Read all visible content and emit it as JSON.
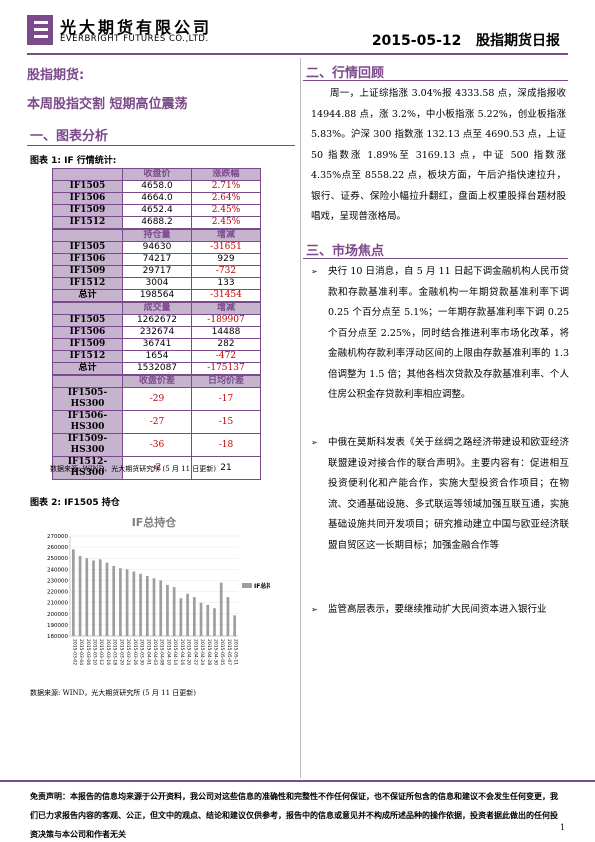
{
  "header": {
    "company_cn": "光大期货有限公司",
    "company_en": "EVERBRIGHT FUTURES CO.,LTD.",
    "date": "2015-05-12",
    "report_name": "股指期货日报"
  },
  "lead": {
    "category": "股指期货:",
    "headline": "本周股指交割 短期高位震荡"
  },
  "section1": {
    "title": "一、图表分析"
  },
  "figure1": {
    "title": "图表 1: IF 行情统计:",
    "groups": [
      {
        "headers": [
          "收盘价",
          "涨跌幅"
        ],
        "rows": [
          [
            "IF1505",
            "4658.0",
            "2.71%"
          ],
          [
            "IF1506",
            "4664.0",
            "2.64%"
          ],
          [
            "IF1509",
            "4652.4",
            "2.45%"
          ],
          [
            "IF1512",
            "4688.2",
            "2.45%"
          ]
        ]
      },
      {
        "headers": [
          "持仓量",
          "增减"
        ],
        "rows": [
          [
            "IF1505",
            "94630",
            "-31651"
          ],
          [
            "IF1506",
            "74217",
            "929"
          ],
          [
            "IF1509",
            "29717",
            "-732"
          ],
          [
            "IF1512",
            "3004",
            "133"
          ],
          [
            "总计",
            "198564",
            "-31454"
          ]
        ]
      },
      {
        "headers": [
          "成交量",
          "增减"
        ],
        "rows": [
          [
            "IF1505",
            "1262672",
            "-189907"
          ],
          [
            "IF1506",
            "232674",
            "14488"
          ],
          [
            "IF1509",
            "36741",
            "282"
          ],
          [
            "IF1512",
            "1654",
            "-472"
          ],
          [
            "总计",
            "1532087",
            "-175137"
          ]
        ]
      },
      {
        "headers": [
          "收盘价差",
          "日均价差"
        ],
        "rows": [
          [
            "IF1505-HS300",
            "-29",
            "-17"
          ],
          [
            "IF1506-HS300",
            "-27",
            "-15"
          ],
          [
            "IF1509-HS300",
            "-36",
            "-18"
          ],
          [
            "IF1512-HS300",
            "-2",
            "21"
          ]
        ]
      }
    ],
    "source": "数据来源: WIND、光大期货研究所 (5 月 11 日更新)"
  },
  "figure2": {
    "title": "图表 2: IF1505 持仓",
    "source": "数据来源: WIND，光大期货研究所 (5 月 11 日更新)"
  },
  "chart_data": {
    "type": "bar",
    "title": "IF总持仓",
    "legend": "IF总持仓",
    "legend_position": "right",
    "ylim": [
      180000,
      270000
    ],
    "yticks": [
      180000,
      190000,
      200000,
      210000,
      220000,
      230000,
      240000,
      250000,
      260000,
      270000
    ],
    "categories": [
      "2015-03-02",
      "2015-03-04",
      "2015-03-06",
      "2015-03-10",
      "2015-03-12",
      "2015-03-16",
      "2015-03-18",
      "2015-03-20",
      "2015-03-24",
      "2015-03-26",
      "2015-03-30",
      "2015-04-01",
      "2015-04-03",
      "2015-04-08",
      "2015-04-10",
      "2015-04-14",
      "2015-04-16",
      "2015-04-20",
      "2015-04-22",
      "2015-04-24",
      "2015-04-28",
      "2015-04-30",
      "2015-05-05",
      "2015-05-07",
      "2015-05-11"
    ],
    "values": [
      258000,
      252000,
      250000,
      248000,
      249000,
      246000,
      243000,
      241000,
      240000,
      238000,
      236000,
      234000,
      232000,
      230000,
      226000,
      224000,
      214000,
      218000,
      215000,
      210000,
      208000,
      205000,
      228000,
      215000,
      198564
    ],
    "color": "#9e9e9e"
  },
  "section2": {
    "title": "二、行情回顾",
    "body": "周一，上证综指涨 3.04%报 4333.58 点，深成指报收 14944.88 点，涨 3.2%，中小板指涨 5.22%，创业板指涨 5.83%。沪深 300 指数涨 132.13 点至 4690.53 点，上证 50 指数涨 1.89%至 3169.13 点，中证 500 指数涨 4.35%点至 8558.22 点，板块方面，午后沪指快速拉升，银行、证券、保险小幅拉升翻红，盘面上权重股择台题材股唱戏，呈现普涨格局。"
  },
  "section3": {
    "title": "三、市场焦点",
    "bullets": [
      "央行 10 日消息，自 5 月 11 日起下调金融机构人民币贷款和存款基准利率。金融机构一年期贷款基准利率下调 0.25 个百分点至 5.1%；一年期存款基准利率下调 0.25 个百分点至 2.25%，同时结合推进利率市场化改革，将金融机构存款利率浮动区间的上限由存款基准利率的 1.3 倍调整为 1.5 倍；其他各档次贷款及存款基准利率、个人住房公积金存贷款利率相应调整。",
      "中俄在莫斯科发表《关于丝绸之路经济带建设和欧亚经济联盟建设对接合作的联合声明》。主要内容有：促进相互投资便利化和产能合作，实施大型投资合作项目；在物流、交通基础设施、多式联运等领域加强互联互通，实施基础设施共同开发项目；研究推动建立中国与欧亚经济联盟自贸区这一长期目标；加强金融合作等",
      "监管高层表示，要继续推动扩大民间资本进入银行业"
    ]
  },
  "footer": {
    "disclaimer": "免责声明：本报告的信息均来源于公开资料，我公司对这些信息的准确性和完整性不作任何保证，也不保证所包含的信息和建议不会发生任何变更，我们已力求报告内容的客观、公正，但文中的观点、结论和建议仅供参考，报告中的信息或意见并不构成所述品种的操作依据，投资者据此做出的任何投资决策与本公司和作者无关",
    "page": "1"
  }
}
